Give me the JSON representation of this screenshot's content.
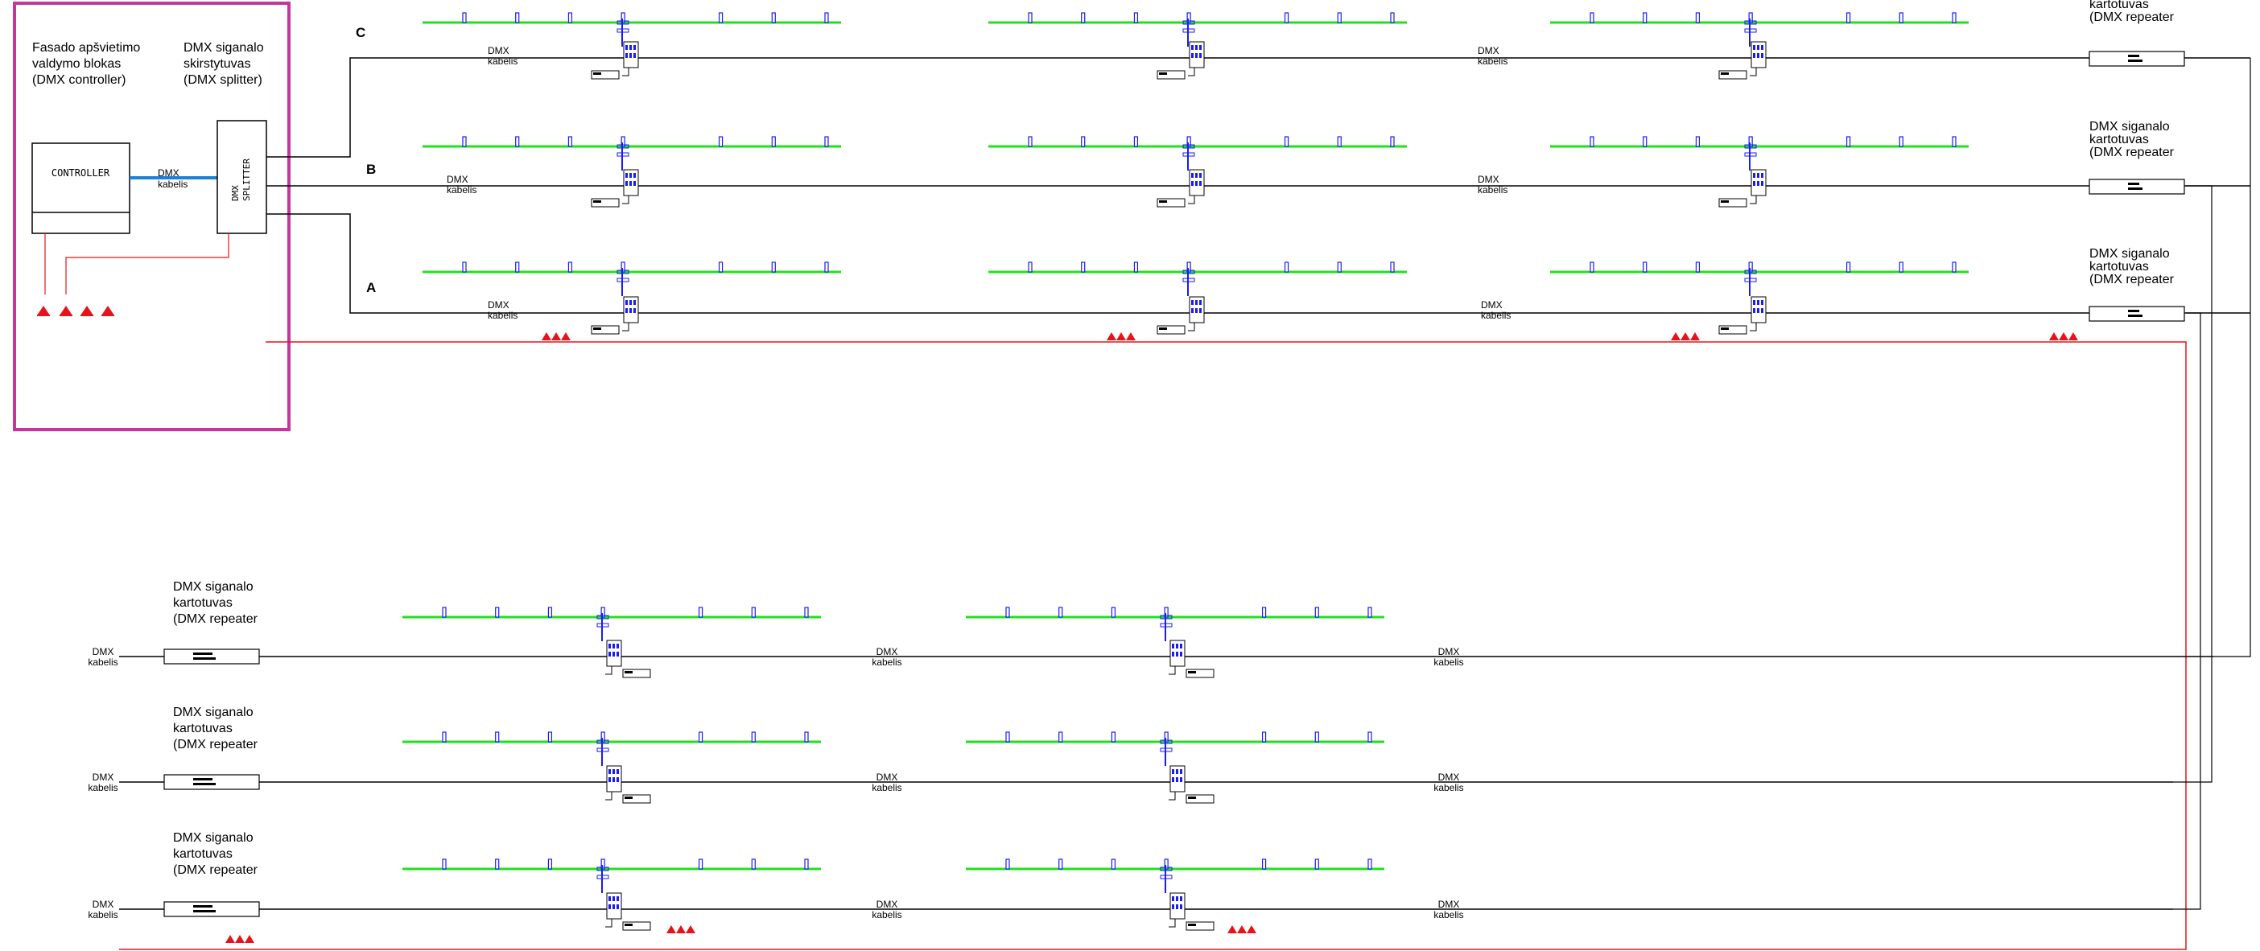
{
  "header": {
    "controller_caption": [
      "Fasado apšvietimo",
      "valdymo blokas",
      "(DMX controller)"
    ],
    "splitter_caption": [
      "DMX siganalo",
      "skirstytuvas",
      "(DMX splitter)"
    ]
  },
  "controller": {
    "label": "CONTROLLER"
  },
  "splitter": {
    "label_line1": "DMX",
    "label_line2": "SPLITTER"
  },
  "cable": {
    "line1": "DMX",
    "line2": "kabelis"
  },
  "repeater_caption": [
    "DMX siganalo",
    "kartotuvas",
    "(DMX repeater"
  ],
  "rows": {
    "c": "C",
    "b": "B",
    "a": "A"
  },
  "colors": {
    "frame": "#c2379a",
    "led": "#22e01e",
    "fixture": "#1a1aff",
    "power": "#e8121a",
    "link": "#1e7fd8",
    "line": "#000000"
  }
}
